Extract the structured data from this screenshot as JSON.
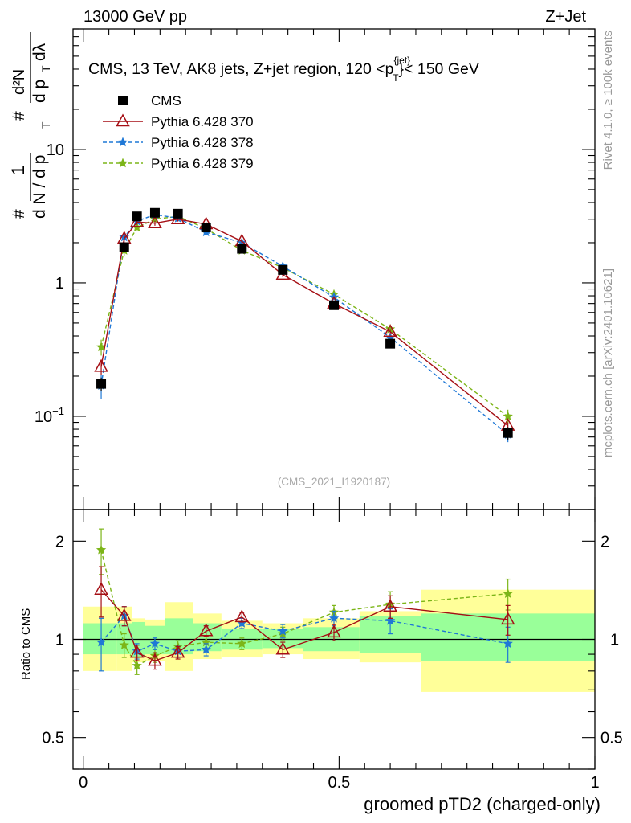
{
  "header": {
    "left": "13000 GeV pp",
    "right": "Z+Jet"
  },
  "side_labels": {
    "rivet": "Rivet 4.1.0, ≥ 100k events",
    "mcplots": "mcplots.cern.ch [arXiv:2401.10621]"
  },
  "chart_data": [
    {
      "type": "scatter",
      "panel": "main",
      "title": "CMS, 13 TeV, AK8 jets, Z+jet region, 120 <p_T^{jet}< 150 GeV",
      "credit": "(CMS_2021_I1920187)",
      "yscale": "log",
      "ylim": [
        0.02,
        80
      ],
      "xlim": [
        -0.02,
        1.0
      ],
      "ylabel_parts": [
        "#",
        "1",
        "d N / d p",
        "T",
        "#",
        "d²N",
        "d p",
        "T",
        "dλ"
      ],
      "ytick_labels": {
        "t01": "10",
        "t01_exp": "−1",
        "t1": "1",
        "t10": "10"
      },
      "yticks": [
        0.1,
        1,
        10
      ],
      "legend": [
        {
          "key": "cms",
          "label": "CMS",
          "color": "#000000",
          "marker": "square",
          "dashed": false
        },
        {
          "key": "p370",
          "label": "Pythia 6.428 370",
          "color": "#a50f15",
          "marker": "triangle",
          "dashed": false
        },
        {
          "key": "p378",
          "label": "Pythia 6.428 378",
          "color": "#1f78d6",
          "marker": "star",
          "dashed": true
        },
        {
          "key": "p379",
          "label": "Pythia 6.428 379",
          "color": "#7cb518",
          "marker": "star",
          "dashed": true
        }
      ],
      "x": [
        0.035,
        0.08,
        0.105,
        0.14,
        0.185,
        0.24,
        0.31,
        0.39,
        0.49,
        0.6,
        0.83
      ],
      "series": [
        {
          "key": "cms",
          "name": "CMS",
          "values": [
            0.175,
            1.85,
            3.15,
            3.35,
            3.3,
            2.6,
            1.8,
            1.25,
            0.68,
            0.35,
            0.075
          ],
          "err": [
            0.02,
            0.15,
            0.2,
            0.2,
            0.2,
            0.15,
            0.1,
            0.08,
            0.04,
            0.02,
            0.008
          ]
        },
        {
          "key": "p370",
          "name": "Pythia 6.428 370",
          "values": [
            0.235,
            2.15,
            2.85,
            2.8,
            3.0,
            2.75,
            2.05,
            1.15,
            0.7,
            0.43,
            0.085
          ],
          "err": [
            0.03,
            0.15,
            0.12,
            0.12,
            0.12,
            0.1,
            0.08,
            0.05,
            0.03,
            0.02,
            0.005
          ]
        },
        {
          "key": "p378",
          "name": "Pythia 6.428 378",
          "values": [
            0.17,
            2.2,
            2.9,
            3.25,
            3.05,
            2.4,
            2.0,
            1.33,
            0.78,
            0.39,
            0.073
          ],
          "err": [
            0.035,
            0.15,
            0.12,
            0.12,
            0.12,
            0.1,
            0.08,
            0.05,
            0.03,
            0.02,
            0.009
          ]
        },
        {
          "key": "p379",
          "name": "Pythia 6.428 379",
          "values": [
            0.33,
            1.75,
            2.6,
            3.0,
            3.15,
            2.55,
            1.75,
            1.3,
            0.82,
            0.45,
            0.1
          ],
          "err": [
            0.045,
            0.15,
            0.12,
            0.12,
            0.12,
            0.1,
            0.08,
            0.05,
            0.03,
            0.02,
            0.012
          ]
        }
      ]
    },
    {
      "type": "scatter",
      "panel": "ratio",
      "ylabel": "Ratio to CMS",
      "xlabel": "groomed pTD2 (charged-only)",
      "ylim": [
        0.4,
        2.5
      ],
      "xlim": [
        -0.02,
        1.0
      ],
      "yticks": [
        0.5,
        1,
        2
      ],
      "ytick_labels": {
        "t05": "0.5",
        "t1": "1",
        "t2": "2"
      },
      "xticks": [
        0,
        0.5,
        1
      ],
      "xtick_labels": {
        "t0": "0",
        "t05": "0.5",
        "t1": "1"
      },
      "bands": {
        "edges": [
          0.0,
          0.065,
          0.095,
          0.12,
          0.16,
          0.215,
          0.27,
          0.35,
          0.43,
          0.54,
          0.66,
          1.0
        ],
        "green_lo": [
          0.9,
          0.9,
          0.88,
          0.9,
          0.9,
          0.92,
          0.93,
          0.94,
          0.92,
          0.91,
          0.86
        ],
        "green_hi": [
          1.12,
          1.12,
          1.13,
          1.1,
          1.16,
          1.12,
          1.08,
          1.08,
          1.09,
          1.18,
          1.2
        ],
        "yellow_lo": [
          0.8,
          0.8,
          0.85,
          0.86,
          0.8,
          0.87,
          0.88,
          0.9,
          0.87,
          0.85,
          0.69
        ],
        "yellow_hi": [
          1.26,
          1.26,
          1.16,
          1.15,
          1.3,
          1.2,
          1.14,
          1.12,
          1.16,
          1.22,
          1.42
        ]
      },
      "series": [
        {
          "key": "p370",
          "values": [
            1.42,
            1.18,
            0.91,
            0.86,
            0.91,
            1.06,
            1.17,
            0.93,
            1.05,
            1.26,
            1.15
          ],
          "err": [
            0.25,
            0.08,
            0.05,
            0.05,
            0.04,
            0.04,
            0.04,
            0.05,
            0.06,
            0.1,
            0.12
          ]
        },
        {
          "key": "p378",
          "values": [
            0.98,
            1.18,
            0.92,
            0.97,
            0.92,
            0.93,
            1.12,
            1.06,
            1.16,
            1.14,
            0.97
          ],
          "err": [
            0.18,
            0.08,
            0.05,
            0.04,
            0.04,
            0.04,
            0.04,
            0.05,
            0.06,
            0.1,
            0.12
          ]
        },
        {
          "key": "p379",
          "values": [
            1.88,
            0.96,
            0.83,
            0.89,
            0.95,
            0.98,
            0.97,
            1.04,
            1.21,
            1.28,
            1.38
          ],
          "err": [
            0.3,
            0.08,
            0.05,
            0.04,
            0.04,
            0.04,
            0.04,
            0.05,
            0.06,
            0.12,
            0.15
          ]
        }
      ]
    }
  ]
}
